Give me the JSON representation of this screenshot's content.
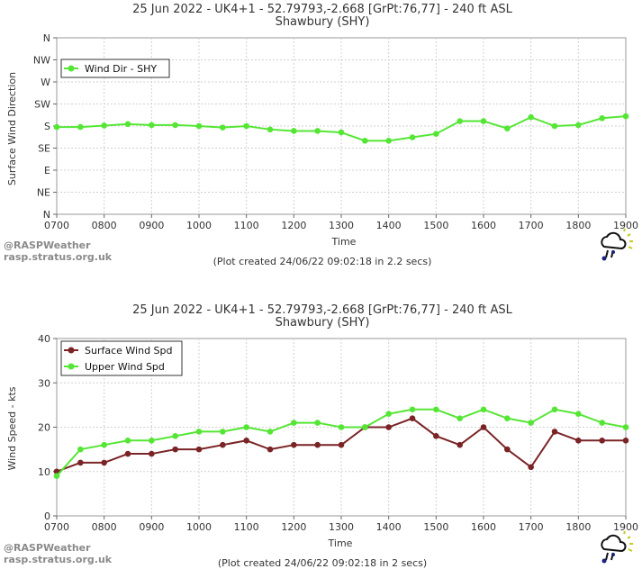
{
  "chart_data": [
    {
      "type": "line",
      "title": "25 Jun 2022 - UK4+1 - 52.79793,-2.668 [GrPt:76,77]  - 240 ft ASL",
      "subtitle": "Shawbury (SHY)",
      "xlabel": "Time",
      "ylabel": "Surface Wind Direction",
      "x": [
        "0700",
        "0730",
        "0800",
        "0830",
        "0900",
        "0930",
        "1000",
        "1030",
        "1100",
        "1130",
        "1200",
        "1230",
        "1300",
        "1330",
        "1400",
        "1430",
        "1500",
        "1530",
        "1600",
        "1630",
        "1700",
        "1730",
        "1800",
        "1830",
        "1900"
      ],
      "x_ticks": [
        "0700",
        "0800",
        "0900",
        "1000",
        "1100",
        "1200",
        "1300",
        "1400",
        "1500",
        "1600",
        "1700",
        "1800",
        "1900"
      ],
      "y_ticks": [
        "N",
        "NE",
        "E",
        "SE",
        "S",
        "SW",
        "W",
        "NW",
        "N"
      ],
      "ylim": [
        0,
        360
      ],
      "grid": true,
      "legend": "top-left",
      "series": [
        {
          "name": "Wind Dir - SHY",
          "color": "#55e635",
          "values": [
            178,
            178,
            181,
            184,
            182,
            182,
            180,
            177,
            180,
            173,
            170,
            170,
            167,
            150,
            150,
            157,
            164,
            190,
            190,
            175,
            198,
            180,
            182,
            196,
            200
          ]
        }
      ],
      "footer": "(Plot created 24/06/22 09:02:18 in 2.2 secs)",
      "watermark": [
        "@RASPWeather",
        "rasp.stratus.org.uk"
      ]
    },
    {
      "type": "line",
      "title": "25 Jun 2022 - UK4+1 - 52.79793,-2.668 [GrPt:76,77]  - 240 ft ASL",
      "subtitle": "Shawbury (SHY)",
      "xlabel": "Time",
      "ylabel": "Wind Speed - kts",
      "x": [
        "0700",
        "0730",
        "0800",
        "0830",
        "0900",
        "0930",
        "1000",
        "1030",
        "1100",
        "1130",
        "1200",
        "1230",
        "1300",
        "1330",
        "1400",
        "1430",
        "1500",
        "1530",
        "1600",
        "1630",
        "1700",
        "1730",
        "1800",
        "1830",
        "1900"
      ],
      "x_ticks": [
        "0700",
        "0800",
        "0900",
        "1000",
        "1100",
        "1200",
        "1300",
        "1400",
        "1500",
        "1600",
        "1700",
        "1800",
        "1900"
      ],
      "y_ticks": [
        "0",
        "10",
        "20",
        "30",
        "40"
      ],
      "ylim": [
        0,
        40
      ],
      "grid": true,
      "legend": "top-left",
      "series": [
        {
          "name": "Surface Wind Spd",
          "color": "#7a2426",
          "values": [
            10,
            12,
            12,
            14,
            14,
            15,
            15,
            16,
            17,
            15,
            16,
            16,
            16,
            20,
            20,
            22,
            18,
            16,
            20,
            15,
            11,
            19,
            17,
            17,
            17
          ]
        },
        {
          "name": "Upper Wind Spd",
          "color": "#55e635",
          "values": [
            9,
            15,
            16,
            17,
            17,
            18,
            19,
            19,
            20,
            19,
            21,
            21,
            20,
            20,
            23,
            24,
            24,
            22,
            24,
            22,
            21,
            24,
            23,
            21,
            20
          ]
        }
      ],
      "footer": "(Plot created 24/06/22 09:02:18 in 2 secs)",
      "watermark": [
        "@RASPWeather",
        "rasp.stratus.org.uk"
      ]
    }
  ]
}
